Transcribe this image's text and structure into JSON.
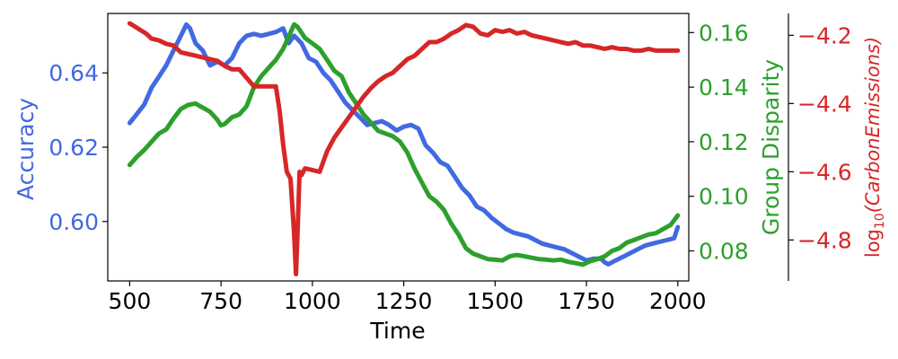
{
  "chart_data": {
    "type": "line",
    "title": "",
    "xlabel": "Time",
    "xlim": [
      440,
      2030
    ],
    "x_ticks": [
      500,
      750,
      1000,
      1250,
      1500,
      1750,
      2000
    ],
    "grid": false,
    "legend": "none",
    "axes": {
      "accuracy": {
        "label": "Accuracy",
        "color": "#4169E1",
        "ylim": [
          0.584,
          0.656
        ],
        "ticks": [
          0.6,
          0.62,
          0.64
        ],
        "tick_labels": [
          "0.60",
          "0.62",
          "0.64"
        ]
      },
      "disparity": {
        "label": "Group Disparity",
        "color": "#2CA02C",
        "ylim": [
          0.069,
          0.167
        ],
        "ticks": [
          0.08,
          0.1,
          0.12,
          0.14,
          0.16
        ],
        "tick_labels": [
          "0.08",
          "0.10",
          "0.12",
          "0.14",
          "0.16"
        ]
      },
      "carbon": {
        "label": "log10(CarbonEmissions)",
        "label_base": "log",
        "label_sub": "10",
        "label_rest": "(CarbonEmissions)",
        "color": "#D62728",
        "ylim": [
          -4.92,
          -4.136
        ],
        "ticks": [
          -4.8,
          -4.6,
          -4.4,
          -4.2
        ],
        "tick_labels": [
          "−4.8",
          "−4.6",
          "−4.4",
          "−4.2"
        ]
      }
    },
    "series": [
      {
        "name": "Accuracy",
        "axis": "accuracy",
        "color": "#4169E1",
        "x": [
          500,
          520,
          540,
          560,
          580,
          600,
          620,
          640,
          655,
          665,
          680,
          700,
          720,
          740,
          760,
          780,
          800,
          820,
          840,
          860,
          880,
          900,
          920,
          935,
          950,
          970,
          990,
          1010,
          1030,
          1050,
          1070,
          1090,
          1110,
          1130,
          1150,
          1170,
          1190,
          1210,
          1230,
          1250,
          1270,
          1290,
          1310,
          1330,
          1350,
          1370,
          1390,
          1410,
          1430,
          1450,
          1470,
          1490,
          1510,
          1530,
          1550,
          1570,
          1590,
          1610,
          1630,
          1650,
          1670,
          1690,
          1710,
          1730,
          1750,
          1770,
          1790,
          1800,
          1810,
          1830,
          1850,
          1870,
          1890,
          1910,
          1930,
          1950,
          1970,
          1990,
          2000
        ],
        "values": [
          0.6265,
          0.629,
          0.6315,
          0.636,
          0.639,
          0.642,
          0.646,
          0.65,
          0.653,
          0.652,
          0.648,
          0.646,
          0.642,
          0.643,
          0.642,
          0.644,
          0.648,
          0.65,
          0.6505,
          0.65,
          0.6505,
          0.651,
          0.652,
          0.648,
          0.65,
          0.648,
          0.644,
          0.643,
          0.64,
          0.638,
          0.635,
          0.632,
          0.63,
          0.628,
          0.626,
          0.6265,
          0.627,
          0.626,
          0.6245,
          0.6255,
          0.626,
          0.625,
          0.6205,
          0.6185,
          0.616,
          0.615,
          0.612,
          0.609,
          0.607,
          0.604,
          0.603,
          0.601,
          0.5995,
          0.598,
          0.597,
          0.5965,
          0.596,
          0.595,
          0.594,
          0.5935,
          0.593,
          0.5925,
          0.5915,
          0.5905,
          0.5895,
          0.59,
          0.59,
          0.589,
          0.5885,
          0.5895,
          0.5905,
          0.5915,
          0.5925,
          0.5935,
          0.594,
          0.5945,
          0.595,
          0.5955,
          0.5985
        ]
      },
      {
        "name": "Group Disparity",
        "axis": "disparity",
        "color": "#2CA02C",
        "x": [
          500,
          520,
          540,
          560,
          580,
          600,
          620,
          640,
          660,
          680,
          700,
          720,
          740,
          750,
          760,
          780,
          800,
          820,
          840,
          860,
          880,
          900,
          920,
          940,
          950,
          960,
          980,
          1000,
          1020,
          1040,
          1060,
          1080,
          1100,
          1120,
          1140,
          1160,
          1180,
          1200,
          1220,
          1240,
          1260,
          1280,
          1300,
          1320,
          1340,
          1360,
          1380,
          1400,
          1420,
          1440,
          1460,
          1480,
          1500,
          1520,
          1540,
          1560,
          1580,
          1600,
          1620,
          1640,
          1660,
          1680,
          1700,
          1720,
          1740,
          1760,
          1780,
          1800,
          1820,
          1840,
          1860,
          1880,
          1900,
          1920,
          1940,
          1960,
          1980,
          2000
        ],
        "values": [
          0.1115,
          0.1145,
          0.117,
          0.12,
          0.123,
          0.1245,
          0.1285,
          0.132,
          0.1335,
          0.134,
          0.1325,
          0.131,
          0.128,
          0.126,
          0.1265,
          0.129,
          0.13,
          0.133,
          0.14,
          0.144,
          0.147,
          0.15,
          0.154,
          0.16,
          0.163,
          0.162,
          0.158,
          0.156,
          0.154,
          0.15,
          0.146,
          0.144,
          0.138,
          0.134,
          0.13,
          0.127,
          0.124,
          0.123,
          0.122,
          0.12,
          0.116,
          0.11,
          0.105,
          0.1,
          0.098,
          0.095,
          0.09,
          0.086,
          0.081,
          0.079,
          0.078,
          0.077,
          0.0768,
          0.0765,
          0.078,
          0.0785,
          0.078,
          0.0775,
          0.077,
          0.0768,
          0.0765,
          0.0768,
          0.076,
          0.0755,
          0.075,
          0.0762,
          0.077,
          0.078,
          0.08,
          0.081,
          0.083,
          0.084,
          0.085,
          0.086,
          0.0865,
          0.088,
          0.0895,
          0.093
        ]
      },
      {
        "name": "log10(Carbon Emissions)",
        "axis": "carbon",
        "color": "#D62728",
        "x": [
          500,
          515,
          530,
          545,
          560,
          580,
          600,
          620,
          640,
          660,
          680,
          700,
          720,
          740,
          760,
          780,
          800,
          820,
          840,
          860,
          880,
          900,
          910,
          920,
          930,
          940,
          950,
          955,
          960,
          965,
          970,
          980,
          1000,
          1020,
          1040,
          1060,
          1080,
          1100,
          1120,
          1140,
          1160,
          1180,
          1200,
          1220,
          1240,
          1260,
          1280,
          1300,
          1320,
          1340,
          1360,
          1380,
          1400,
          1420,
          1440,
          1460,
          1480,
          1500,
          1520,
          1540,
          1560,
          1580,
          1600,
          1620,
          1640,
          1660,
          1680,
          1700,
          1720,
          1740,
          1760,
          1780,
          1800,
          1820,
          1840,
          1860,
          1880,
          1900,
          1920,
          1940,
          1960,
          1980,
          2000
        ],
        "values": [
          -4.165,
          -4.175,
          -4.185,
          -4.195,
          -4.21,
          -4.215,
          -4.225,
          -4.23,
          -4.25,
          -4.255,
          -4.26,
          -4.265,
          -4.27,
          -4.275,
          -4.29,
          -4.3,
          -4.3,
          -4.325,
          -4.35,
          -4.35,
          -4.35,
          -4.35,
          -4.42,
          -4.52,
          -4.6,
          -4.62,
          -4.78,
          -4.9,
          -4.76,
          -4.6,
          -4.61,
          -4.59,
          -4.595,
          -4.6,
          -4.54,
          -4.5,
          -4.47,
          -4.44,
          -4.41,
          -4.38,
          -4.355,
          -4.335,
          -4.32,
          -4.31,
          -4.29,
          -4.27,
          -4.26,
          -4.24,
          -4.22,
          -4.22,
          -4.21,
          -4.195,
          -4.185,
          -4.17,
          -4.175,
          -4.195,
          -4.2,
          -4.185,
          -4.19,
          -4.185,
          -4.195,
          -4.19,
          -4.2,
          -4.205,
          -4.21,
          -4.215,
          -4.22,
          -4.225,
          -4.22,
          -4.23,
          -4.23,
          -4.235,
          -4.24,
          -4.235,
          -4.24,
          -4.24,
          -4.245,
          -4.245,
          -4.24,
          -4.245,
          -4.245,
          -4.245,
          -4.245
        ]
      }
    ]
  }
}
